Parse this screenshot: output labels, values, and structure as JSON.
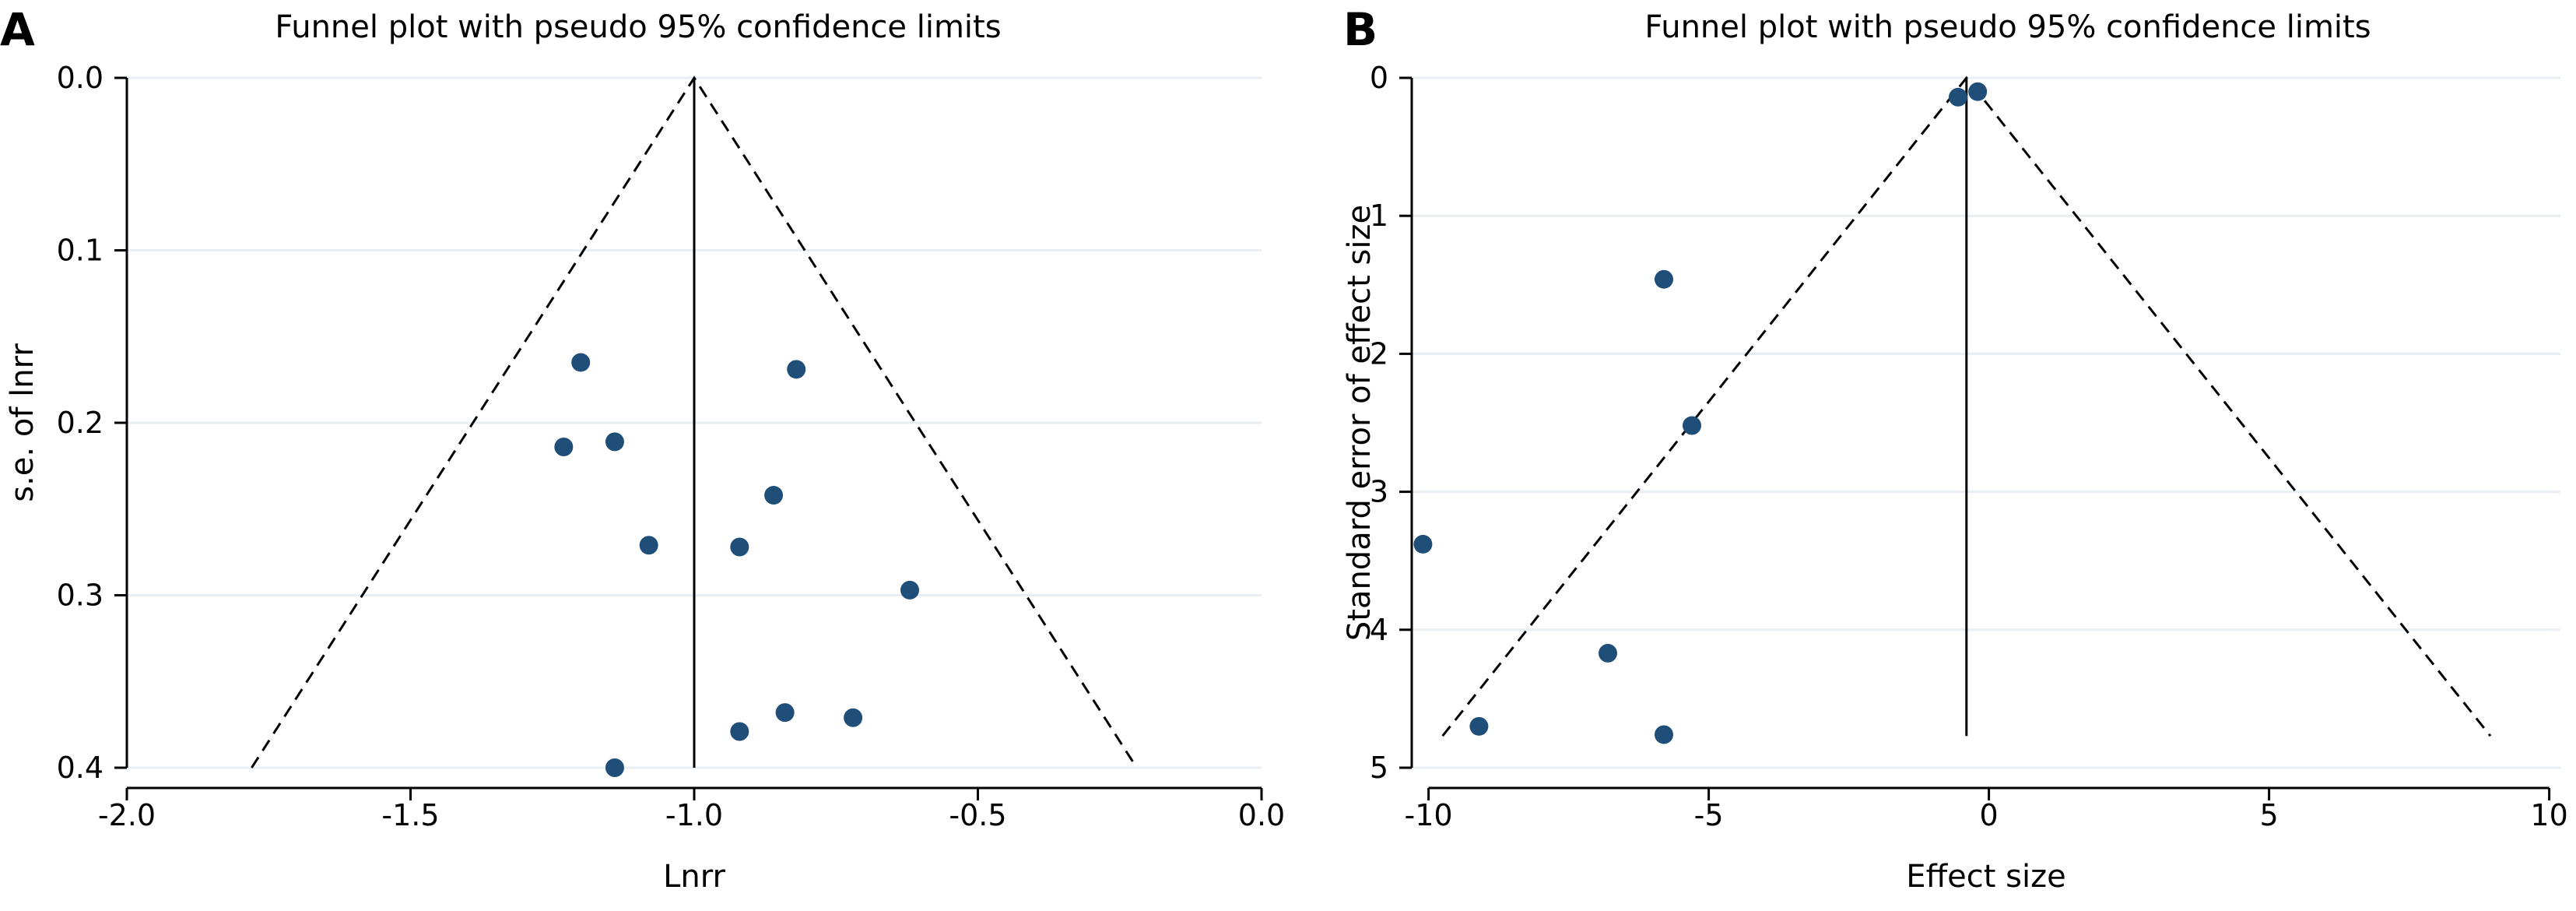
{
  "colors": {
    "marker": "#1f4e79",
    "grid": "#e9eef2",
    "axis": "#000000"
  },
  "chart_data": [
    {
      "type": "scatter",
      "panel_label": "A",
      "title": "Funnel plot with pseudo 95% confidence limits",
      "xlabel": "Lnrr",
      "ylabel": "s.e. of lnrr",
      "xlim": [
        -2.0,
        0.0
      ],
      "ylim": [
        0.4,
        0.0
      ],
      "y_reversed": true,
      "grid": true,
      "x_ticks": [
        -2.0,
        -1.5,
        -1.0,
        -0.5,
        0.0
      ],
      "x_tick_labels": [
        "-2.0",
        "-1.5",
        "-1.0",
        "-0.5",
        "0.0"
      ],
      "y_ticks": [
        0.0,
        0.1,
        0.2,
        0.3,
        0.4
      ],
      "y_tick_labels": [
        "0.0",
        "0.1",
        "0.2",
        "0.3",
        "0.4"
      ],
      "pooled_effect": -1.0,
      "funnel": {
        "apex": [
          -1.0,
          0.0
        ],
        "left_bottom": [
          -1.78,
          0.4
        ],
        "right_bottom": [
          -0.22,
          0.4
        ]
      },
      "points": [
        {
          "x": -1.2,
          "y": 0.165
        },
        {
          "x": -0.82,
          "y": 0.169
        },
        {
          "x": -1.14,
          "y": 0.211
        },
        {
          "x": -1.23,
          "y": 0.214
        },
        {
          "x": -0.86,
          "y": 0.242
        },
        {
          "x": -1.08,
          "y": 0.271
        },
        {
          "x": -0.92,
          "y": 0.272
        },
        {
          "x": -0.62,
          "y": 0.297
        },
        {
          "x": -0.84,
          "y": 0.368
        },
        {
          "x": -0.72,
          "y": 0.371
        },
        {
          "x": -0.92,
          "y": 0.379
        },
        {
          "x": -1.14,
          "y": 0.4
        }
      ]
    },
    {
      "type": "scatter",
      "panel_label": "B",
      "title": "Funnel plot with pseudo 95% confidence limits",
      "xlabel": "Effect size",
      "ylabel": "Standard error of effect size",
      "xlim": [
        -10.3,
        10.2
      ],
      "ylim": [
        5,
        0
      ],
      "y_reversed": true,
      "grid": true,
      "x_ticks": [
        -10,
        -5,
        0,
        5,
        10
      ],
      "x_tick_labels": [
        "-10",
        "-5",
        "0",
        "5",
        "10"
      ],
      "y_ticks": [
        0,
        1,
        2,
        3,
        4,
        5
      ],
      "y_tick_labels": [
        "0",
        "1",
        "2",
        "3",
        "4",
        "5"
      ],
      "pooled_effect": -0.4,
      "funnel": {
        "apex": [
          -0.4,
          0.0
        ],
        "left_bottom": [
          -9.75,
          4.77
        ],
        "right_bottom": [
          8.95,
          4.77
        ]
      },
      "points": [
        {
          "x": -0.55,
          "y": 0.14
        },
        {
          "x": -0.2,
          "y": 0.1
        },
        {
          "x": -5.8,
          "y": 1.46
        },
        {
          "x": -5.3,
          "y": 2.52
        },
        {
          "x": -10.1,
          "y": 3.38
        },
        {
          "x": -6.8,
          "y": 4.17
        },
        {
          "x": -9.1,
          "y": 4.7
        },
        {
          "x": -5.8,
          "y": 4.76
        }
      ]
    }
  ]
}
